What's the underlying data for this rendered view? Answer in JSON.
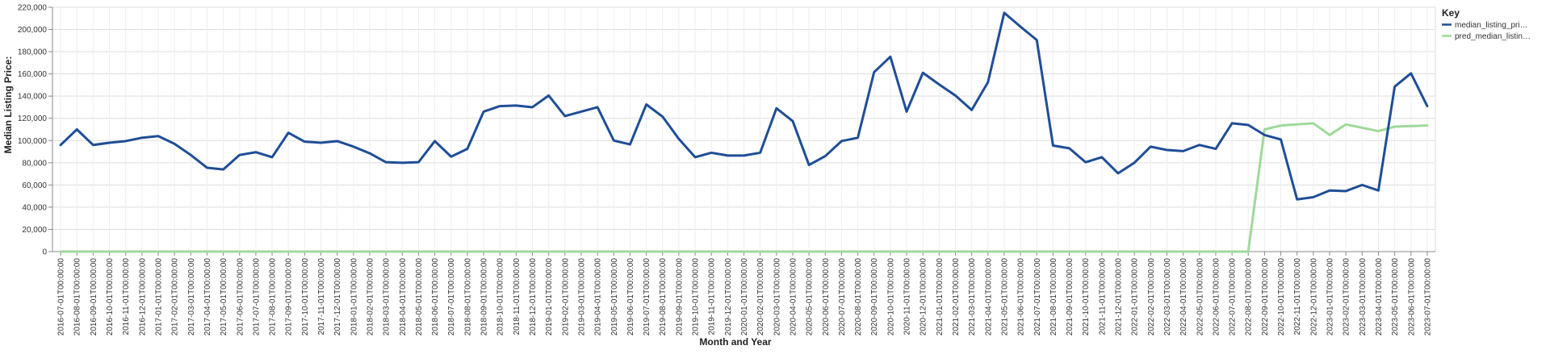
{
  "chart_data": {
    "type": "line",
    "xlabel": "Month and Year",
    "ylabel": "Median Listing Price:",
    "ylim": [
      0,
      220000
    ],
    "yticks": [
      0,
      20000,
      40000,
      60000,
      80000,
      100000,
      120000,
      140000,
      160000,
      180000,
      200000,
      220000
    ],
    "ytick_labels": [
      "0",
      "20,000",
      "40,000",
      "60,000",
      "80,000",
      "100,000",
      "120,000",
      "140,000",
      "160,000",
      "180,000",
      "200,000",
      "220,000"
    ],
    "grid": true,
    "legend_position": "top-right",
    "legend_title": "Key",
    "categories": [
      "2016-07-01T00:00:00",
      "2016-08-01T00:00:00",
      "2016-09-01T00:00:00",
      "2016-10-01T00:00:00",
      "2016-11-01T00:00:00",
      "2016-12-01T00:00:00",
      "2017-01-01T00:00:00",
      "2017-02-01T00:00:00",
      "2017-03-01T00:00:00",
      "2017-04-01T00:00:00",
      "2017-05-01T00:00:00",
      "2017-06-01T00:00:00",
      "2017-07-01T00:00:00",
      "2017-08-01T00:00:00",
      "2017-09-01T00:00:00",
      "2017-10-01T00:00:00",
      "2017-11-01T00:00:00",
      "2017-12-01T00:00:00",
      "2018-01-01T00:00:00",
      "2018-02-01T00:00:00",
      "2018-03-01T00:00:00",
      "2018-04-01T00:00:00",
      "2018-05-01T00:00:00",
      "2018-06-01T00:00:00",
      "2018-07-01T00:00:00",
      "2018-08-01T00:00:00",
      "2018-09-01T00:00:00",
      "2018-10-01T00:00:00",
      "2018-11-01T00:00:00",
      "2018-12-01T00:00:00",
      "2019-01-01T00:00:00",
      "2019-02-01T00:00:00",
      "2019-03-01T00:00:00",
      "2019-04-01T00:00:00",
      "2019-05-01T00:00:00",
      "2019-06-01T00:00:00",
      "2019-07-01T00:00:00",
      "2019-08-01T00:00:00",
      "2019-09-01T00:00:00",
      "2019-10-01T00:00:00",
      "2019-11-01T00:00:00",
      "2019-12-01T00:00:00",
      "2020-01-01T00:00:00",
      "2020-02-01T00:00:00",
      "2020-03-01T00:00:00",
      "2020-04-01T00:00:00",
      "2020-05-01T00:00:00",
      "2020-06-01T00:00:00",
      "2020-07-01T00:00:00",
      "2020-08-01T00:00:00",
      "2020-09-01T00:00:00",
      "2020-10-01T00:00:00",
      "2020-11-01T00:00:00",
      "2020-12-01T00:00:00",
      "2021-01-01T00:00:00",
      "2021-02-01T00:00:00",
      "2021-03-01T00:00:00",
      "2021-04-01T00:00:00",
      "2021-05-01T00:00:00",
      "2021-06-01T00:00:00",
      "2021-07-01T00:00:00",
      "2021-08-01T00:00:00",
      "2021-09-01T00:00:00",
      "2021-10-01T00:00:00",
      "2021-11-01T00:00:00",
      "2021-12-01T00:00:00",
      "2022-01-01T00:00:00",
      "2022-02-01T00:00:00",
      "2022-03-01T00:00:00",
      "2022-04-01T00:00:00",
      "2022-05-01T00:00:00",
      "2022-06-01T00:00:00",
      "2022-07-01T00:00:00",
      "2022-08-01T00:00:00",
      "2022-09-01T00:00:00",
      "2022-10-01T00:00:00",
      "2022-11-01T00:00:00",
      "2022-12-01T00:00:00",
      "2023-01-01T00:00:00",
      "2023-02-01T00:00:00",
      "2023-03-01T00:00:00",
      "2023-04-01T00:00:00",
      "2023-05-01T00:00:00",
      "2023-06-01T00:00:00",
      "2023-07-01T00:00:00"
    ],
    "series": [
      {
        "name": "median_listing_pri…",
        "color": "#1f4e96",
        "values": [
          96000,
          110000,
          96000,
          98000,
          99500,
          102500,
          104000,
          97000,
          87000,
          75500,
          74000,
          87000,
          89500,
          85000,
          107000,
          99000,
          98000,
          99500,
          94500,
          88500,
          80500,
          80000,
          80500,
          99500,
          85500,
          92500,
          126000,
          131000,
          131500,
          130000,
          140500,
          122000,
          126000,
          130000,
          100000,
          96500,
          132500,
          121500,
          101500,
          85000,
          89000,
          86500,
          86500,
          89000,
          129000,
          117500,
          78000,
          86000,
          99500,
          102500,
          161500,
          175500,
          126000,
          161000,
          150500,
          140500,
          127500,
          152500,
          215000,
          202500,
          190500,
          95500,
          93000,
          80500,
          85000,
          70500,
          80000,
          94500,
          91500,
          90500,
          96000,
          92500,
          115500,
          114000,
          105000,
          101000,
          47000,
          49000,
          55000,
          54500,
          60000,
          55000,
          148500,
          160500,
          131000
        ]
      },
      {
        "name": "pred_median_listin…",
        "color": "#9fd99b",
        "values": [
          0,
          0,
          0,
          0,
          0,
          0,
          0,
          0,
          0,
          0,
          0,
          0,
          0,
          0,
          0,
          0,
          0,
          0,
          0,
          0,
          0,
          0,
          0,
          0,
          0,
          0,
          0,
          0,
          0,
          0,
          0,
          0,
          0,
          0,
          0,
          0,
          0,
          0,
          0,
          0,
          0,
          0,
          0,
          0,
          0,
          0,
          0,
          0,
          0,
          0,
          0,
          0,
          0,
          0,
          0,
          0,
          0,
          0,
          0,
          0,
          0,
          0,
          0,
          0,
          0,
          0,
          0,
          0,
          0,
          0,
          0,
          0,
          0,
          0,
          110000,
          113500,
          114500,
          115500,
          105000,
          114500,
          111500,
          108500,
          112500,
          113000,
          113500
        ]
      }
    ]
  }
}
